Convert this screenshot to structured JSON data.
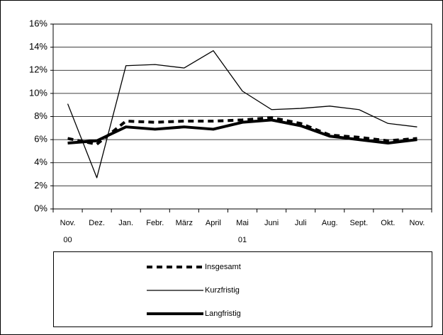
{
  "chart_data": {
    "type": "line",
    "categories": [
      "Nov.",
      "Dez.",
      "Jan.",
      "Febr.",
      "März",
      "April",
      "Mai",
      "Juni",
      "Juli",
      "Aug.",
      "Sept.",
      "Okt.",
      "Nov."
    ],
    "category_years": [
      "00",
      null,
      null,
      null,
      null,
      null,
      "01",
      null,
      null,
      null,
      null,
      null,
      null
    ],
    "series": [
      {
        "name": "Insgesamt",
        "color": "#000000",
        "line_width": 4,
        "dash": "8,6",
        "values": [
          6.1,
          5.6,
          7.6,
          7.5,
          7.6,
          7.6,
          7.7,
          7.9,
          7.4,
          6.4,
          6.2,
          5.9,
          6.1
        ]
      },
      {
        "name": "Kurzfristig",
        "color": "#000000",
        "line_width": 1.3,
        "dash": null,
        "values": [
          9.1,
          2.7,
          12.4,
          12.5,
          12.2,
          13.7,
          10.2,
          8.6,
          8.7,
          8.9,
          8.6,
          7.4,
          7.1
        ]
      },
      {
        "name": "Langfristig",
        "color": "#000000",
        "line_width": 4,
        "dash": null,
        "values": [
          5.7,
          5.9,
          7.1,
          6.9,
          7.1,
          6.9,
          7.5,
          7.7,
          7.2,
          6.3,
          6.0,
          5.7,
          6.0
        ]
      }
    ],
    "ylim": [
      0,
      16
    ],
    "yticks": [
      {
        "value": 0,
        "label": "0%"
      },
      {
        "value": 2,
        "label": "2%"
      },
      {
        "value": 4,
        "label": "4%"
      },
      {
        "value": 6,
        "label": "6%"
      },
      {
        "value": 8,
        "label": "8%"
      },
      {
        "value": 10,
        "label": "10%"
      },
      {
        "value": 12,
        "label": "12%"
      },
      {
        "value": 14,
        "label": "14%"
      },
      {
        "value": 16,
        "label": "16%"
      }
    ],
    "grid": true,
    "legend": "bottom"
  }
}
